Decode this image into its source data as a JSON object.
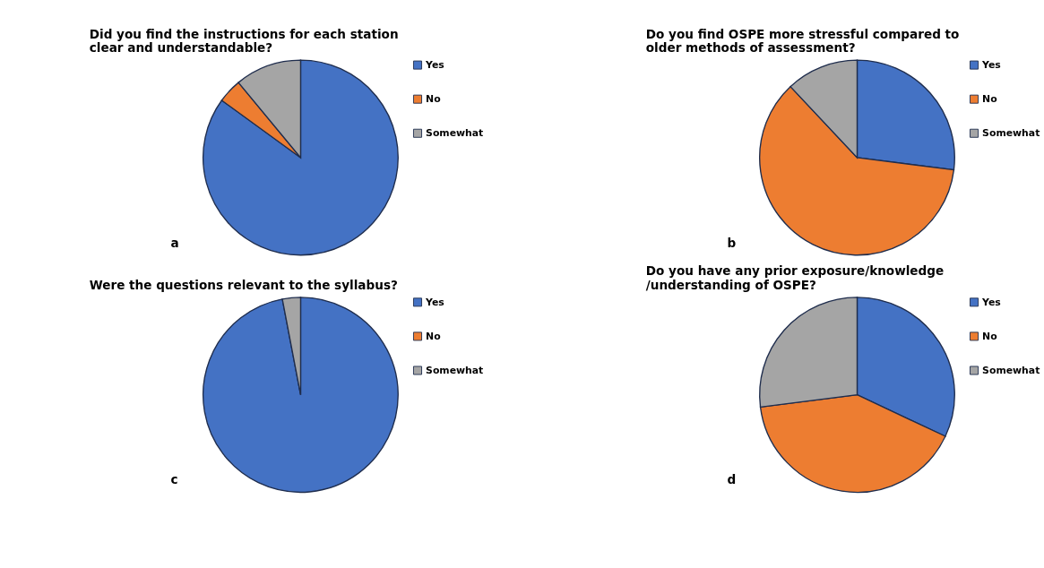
{
  "chart_data": [
    {
      "type": "pie",
      "title": "Did you find the instructions for each station clear and understandable?",
      "categories": [
        "Yes",
        "No",
        "Somewhat"
      ],
      "values": [
        85,
        4,
        11
      ],
      "colors": [
        "#4472c4",
        "#ed7d31",
        "#a5a5a5"
      ],
      "legend": "right",
      "annotations": [
        "a"
      ]
    },
    {
      "type": "pie",
      "title": "Do you find OSPE more stressful compared to older methods of assessment?",
      "categories": [
        "Yes",
        "No",
        "Somewhat"
      ],
      "values": [
        27,
        61,
        12
      ],
      "colors": [
        "#4472c4",
        "#ed7d31",
        "#a5a5a5"
      ],
      "legend": "right",
      "annotations": [
        "b"
      ]
    },
    {
      "type": "pie",
      "title": "Were the questions relevant to the syllabus?",
      "categories": [
        "Yes",
        "No",
        "Somewhat"
      ],
      "values": [
        97,
        0,
        3
      ],
      "colors": [
        "#4472c4",
        "#ed7d31",
        "#a5a5a5"
      ],
      "legend": "right",
      "annotations": [
        "c"
      ]
    },
    {
      "type": "pie",
      "title": "Do you have any prior exposure/knowledge /understanding of OSPE?",
      "categories": [
        "Yes",
        "No",
        "Somewhat"
      ],
      "values": [
        32,
        41,
        27
      ],
      "colors": [
        "#4472c4",
        "#ed7d31",
        "#a5a5a5"
      ],
      "legend": "right",
      "annotations": [
        "d"
      ]
    }
  ]
}
